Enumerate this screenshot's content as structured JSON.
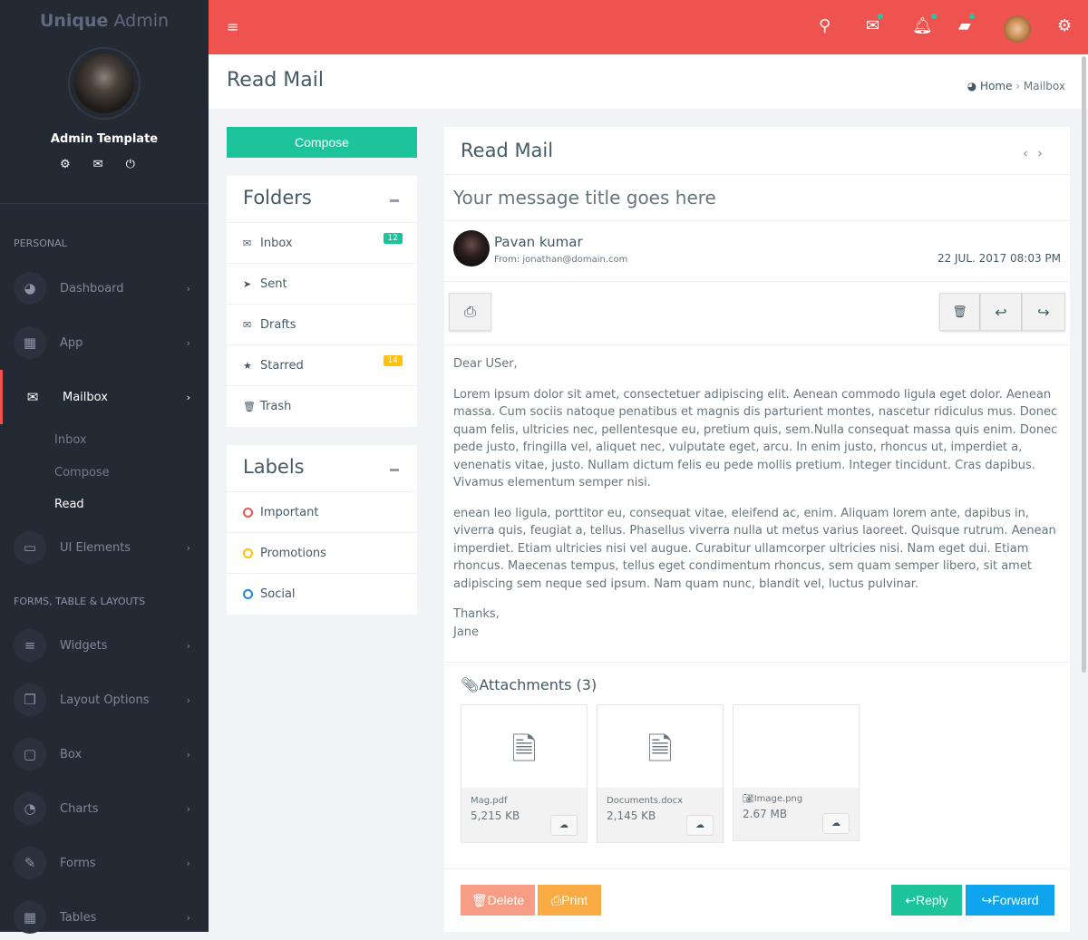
{
  "brand": {
    "bold": "Unique",
    "light": " Admin"
  },
  "user": {
    "name": "Admin Template"
  },
  "sidebar": {
    "section1": "PERSONAL",
    "section2": "FORMS, TABLE & LAYOUTS",
    "items": [
      {
        "label": "Dashboard",
        "icon": "dashboard-icon"
      },
      {
        "label": "App",
        "icon": "grid-icon"
      },
      {
        "label": "Mailbox",
        "icon": "envelope-icon"
      },
      {
        "label": "UI Elements",
        "icon": "laptop-icon"
      },
      {
        "label": "Widgets",
        "icon": "bars-icon"
      },
      {
        "label": "Layout Options",
        "icon": "copy-icon"
      },
      {
        "label": "Box",
        "icon": "square-icon"
      },
      {
        "label": "Charts",
        "icon": "pie-chart-icon"
      },
      {
        "label": "Forms",
        "icon": "edit-icon"
      },
      {
        "label": "Tables",
        "icon": "table-icon"
      }
    ],
    "sub": [
      "Inbox",
      "Compose",
      "Read"
    ]
  },
  "colors": {
    "topbar": "#ef5350",
    "sidebar": "#242a33",
    "compose": "#1dc39b",
    "delete": "#f79d85",
    "print": "#fbab43",
    "reply": "#1dc39b",
    "forward": "#0ea5ee"
  },
  "page": {
    "title": "Read Mail",
    "breadcrumb": [
      "Home",
      "Mailbox"
    ]
  },
  "compose": "Compose",
  "folders": {
    "title": "Folders",
    "items": [
      {
        "label": "Inbox",
        "badge": "12",
        "badge_color": "#1dc39b"
      },
      {
        "label": "Sent"
      },
      {
        "label": "Drafts"
      },
      {
        "label": "Starred",
        "badge": "14",
        "badge_color": "#fec107"
      },
      {
        "label": "Trash"
      }
    ]
  },
  "labels": {
    "title": "Labels",
    "items": [
      {
        "label": "Important",
        "color": "#ef5350"
      },
      {
        "label": "Promotions",
        "color": "#fec107"
      },
      {
        "label": "Social",
        "color": "#1e88e5"
      }
    ]
  },
  "mail": {
    "header": "Read Mail",
    "subject": "Your message title goes here",
    "sender": "Pavan kumar",
    "from": "From: jonathan@domain.com",
    "date": "22 JUL. 2017 08:03 PM",
    "greeting": "Dear USer,",
    "p1": "Lorem ipsum dolor sit amet, consectetuer adipiscing elit. Aenean commodo ligula eget dolor. Aenean massa. Cum sociis natoque penatibus et magnis dis parturient montes, nascetur ridiculus mus. Donec quam felis, ultricies nec, pellentesque eu, pretium quis, sem.Nulla consequat massa quis enim. Donec pede justo, fringilla vel, aliquet nec, vulputate eget, arcu. In enim justo, rhoncus ut, imperdiet a, venenatis vitae, justo. Nullam dictum felis eu pede mollis pretium. Integer tincidunt. Cras dapibus. Vivamus elementum semper nisi.",
    "p2": "enean leo ligula, porttitor eu, consequat vitae, eleifend ac, enim. Aliquam lorem ante, dapibus in, viverra quis, feugiat a, tellus. Phasellus viverra nulla ut metus varius laoreet. Quisque rutrum. Aenean imperdiet. Etiam ultricies nisi vel augue. Curabitur ullamcorper ultricies nisi. Nam eget dui. Etiam rhoncus. Maecenas tempus, tellus eget condimentum rhoncus, sem quam semper libero, sit amet adipiscing sem neque sed ipsum. Nam quam nunc, blandit vel, luctus pulvinar.",
    "sign1": "Thanks,",
    "sign2": "Jane",
    "attachments_title": "Attachments (3)",
    "attachments": [
      {
        "name": "Mag.pdf",
        "size": "5,215 KB",
        "icon": "file-pdf-icon"
      },
      {
        "name": "Documents.docx",
        "size": "2,145 KB",
        "icon": "file-word-icon"
      },
      {
        "name": "Image.png",
        "size": "2.67 MB",
        "icon": "camera-icon"
      }
    ],
    "buttons": {
      "delete": "Delete",
      "print": "Print",
      "reply": "Reply",
      "forward": "Forward"
    }
  }
}
